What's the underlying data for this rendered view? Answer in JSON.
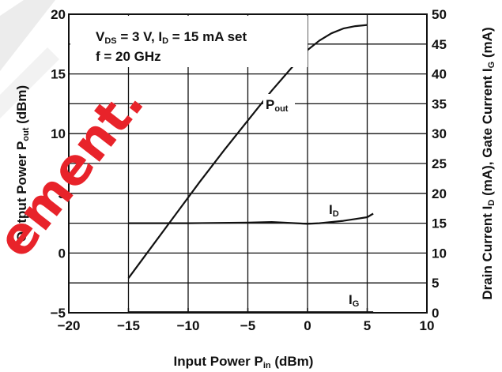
{
  "chart_data": {
    "type": "line",
    "conditions": {
      "line1": {
        "a": "V",
        "a_sub": "DS",
        "b": " = 3 V, I",
        "b_sub": "D",
        "c": " = 15 mA set"
      },
      "line2": "f = 20 GHz"
    },
    "xlabel": {
      "main": "Input Power  P",
      "sub": "in",
      "unit": " (dBm)"
    },
    "ylabel_left": {
      "main": "Output Power P",
      "sub": "out",
      "unit": " (dBm)"
    },
    "ylabel_right": {
      "a": "Drain Current  I",
      "a_sub": "D",
      "b": " (mA), Gate Current  I",
      "b_sub": "G",
      "c": " (mA)"
    },
    "xlim": [
      -20,
      10
    ],
    "ylim_left": [
      -5,
      20
    ],
    "ylim_right": [
      0,
      50
    ],
    "grid": true,
    "x_ticks": [
      "−20",
      "−15",
      "−10",
      "−5",
      "0",
      "5",
      "10"
    ],
    "y_left_ticks": [
      "−5",
      "0",
      "5",
      "10",
      "15",
      "20"
    ],
    "y_right_ticks": [
      "0",
      "5",
      "10",
      "15",
      "20",
      "25",
      "30",
      "35",
      "40",
      "45",
      "50"
    ],
    "series": [
      {
        "name": "P",
        "name_sub": "out",
        "axis": "left",
        "x": [
          -15,
          -13,
          -11,
          -9,
          -7,
          -5,
          -3,
          -1,
          0,
          1,
          2,
          3,
          4,
          5
        ],
        "y": [
          -2.1,
          0.6,
          3.3,
          6.0,
          8.6,
          11.1,
          13.6,
          15.9,
          17.0,
          17.8,
          18.4,
          18.8,
          19.0,
          19.1
        ]
      },
      {
        "name": "I",
        "name_sub": "D",
        "axis": "right",
        "x": [
          -15,
          -10,
          -5,
          -3,
          -1,
          0,
          1,
          3,
          4,
          5,
          5.5
        ],
        "y": [
          15.0,
          15.0,
          15.1,
          15.2,
          15.0,
          14.9,
          15.0,
          15.4,
          15.7,
          16.0,
          16.6
        ]
      },
      {
        "name": "I",
        "name_sub": "G",
        "axis": "right",
        "x": [
          -15,
          -10,
          -5,
          0,
          5,
          5.5
        ],
        "y": [
          0.1,
          0.1,
          0.1,
          0.1,
          0.1,
          0.1
        ]
      }
    ],
    "watermark": "ement.",
    "colors": {
      "axis": "#111111",
      "line": "#111111",
      "watermark": "#e8232a",
      "watermark_light": "#cfcfcf"
    }
  }
}
